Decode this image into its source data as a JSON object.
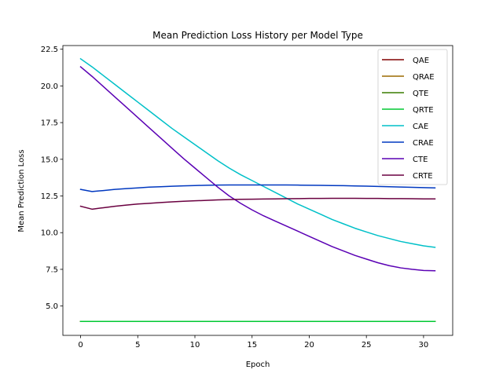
{
  "chart_data": {
    "type": "line",
    "title": "Mean Prediction Loss History per Model Type",
    "xlabel": "Epoch",
    "ylabel": "Mean Prediction Loss",
    "xlim": [
      -1.55,
      32.55
    ],
    "ylim": [
      3.0,
      22.75
    ],
    "xticks": [
      0,
      5,
      10,
      15,
      20,
      25,
      30
    ],
    "yticks": [
      5.0,
      7.5,
      10.0,
      12.5,
      15.0,
      17.5,
      20.0,
      22.5
    ],
    "ytick_labels": [
      "5.0",
      "7.5",
      "10.0",
      "12.5",
      "15.0",
      "17.5",
      "20.0",
      "22.5"
    ],
    "grid": false,
    "legend_position": "top-right",
    "x": [
      0,
      1,
      2,
      3,
      4,
      5,
      6,
      7,
      8,
      9,
      10,
      11,
      12,
      13,
      14,
      15,
      16,
      17,
      18,
      19,
      20,
      21,
      22,
      23,
      24,
      25,
      26,
      27,
      28,
      29,
      30,
      31
    ],
    "series": [
      {
        "name": "QAE",
        "color": "#800000",
        "values": [
          3.95,
          3.95,
          3.95,
          3.95,
          3.95,
          3.95,
          3.95,
          3.95,
          3.95,
          3.95,
          3.95,
          3.95,
          3.95,
          3.95,
          3.95,
          3.95,
          3.95,
          3.95,
          3.95,
          3.95,
          3.95,
          3.95,
          3.95,
          3.95,
          3.95,
          3.95,
          3.95,
          3.95,
          3.95,
          3.95,
          3.95,
          3.95
        ]
      },
      {
        "name": "QRAE",
        "color": "#9b6a00",
        "values": [
          3.95,
          3.95,
          3.95,
          3.95,
          3.95,
          3.95,
          3.95,
          3.95,
          3.95,
          3.95,
          3.95,
          3.95,
          3.95,
          3.95,
          3.95,
          3.95,
          3.95,
          3.95,
          3.95,
          3.95,
          3.95,
          3.95,
          3.95,
          3.95,
          3.95,
          3.95,
          3.95,
          3.95,
          3.95,
          3.95,
          3.95,
          3.95
        ]
      },
      {
        "name": "QTE",
        "color": "#3a7d00",
        "values": [
          3.95,
          3.95,
          3.95,
          3.95,
          3.95,
          3.95,
          3.95,
          3.95,
          3.95,
          3.95,
          3.95,
          3.95,
          3.95,
          3.95,
          3.95,
          3.95,
          3.95,
          3.95,
          3.95,
          3.95,
          3.95,
          3.95,
          3.95,
          3.95,
          3.95,
          3.95,
          3.95,
          3.95,
          3.95,
          3.95,
          3.95,
          3.95
        ]
      },
      {
        "name": "QRTE",
        "color": "#00c832",
        "values": [
          3.95,
          3.95,
          3.95,
          3.95,
          3.95,
          3.95,
          3.95,
          3.95,
          3.95,
          3.95,
          3.95,
          3.95,
          3.95,
          3.95,
          3.95,
          3.95,
          3.95,
          3.95,
          3.95,
          3.95,
          3.95,
          3.95,
          3.95,
          3.95,
          3.95,
          3.95,
          3.95,
          3.95,
          3.95,
          3.95,
          3.95,
          3.95
        ]
      },
      {
        "name": "CAE",
        "color": "#00c0c8",
        "values": [
          21.85,
          21.3,
          20.7,
          20.1,
          19.5,
          18.9,
          18.3,
          17.7,
          17.1,
          16.55,
          16.0,
          15.45,
          14.9,
          14.4,
          13.95,
          13.55,
          13.15,
          12.75,
          12.35,
          11.95,
          11.6,
          11.25,
          10.9,
          10.6,
          10.3,
          10.05,
          9.8,
          9.6,
          9.4,
          9.25,
          9.1,
          9.0
        ]
      },
      {
        "name": "CRAE",
        "color": "#0038c0",
        "values": [
          12.95,
          12.8,
          12.87,
          12.95,
          13.0,
          13.05,
          13.1,
          13.13,
          13.16,
          13.19,
          13.21,
          13.23,
          13.24,
          13.25,
          13.25,
          13.25,
          13.25,
          13.25,
          13.25,
          13.24,
          13.23,
          13.22,
          13.21,
          13.2,
          13.18,
          13.17,
          13.15,
          13.13,
          13.11,
          13.09,
          13.07,
          13.05
        ]
      },
      {
        "name": "CTE",
        "color": "#5a00b4",
        "values": [
          21.3,
          20.65,
          19.95,
          19.25,
          18.55,
          17.85,
          17.15,
          16.45,
          15.75,
          15.05,
          14.4,
          13.75,
          13.1,
          12.5,
          12.0,
          11.55,
          11.15,
          10.8,
          10.45,
          10.1,
          9.75,
          9.4,
          9.05,
          8.75,
          8.45,
          8.2,
          7.95,
          7.75,
          7.6,
          7.5,
          7.42,
          7.4
        ]
      },
      {
        "name": "CRTE",
        "color": "#6a0040",
        "values": [
          11.8,
          11.6,
          11.7,
          11.8,
          11.88,
          11.95,
          12.0,
          12.05,
          12.1,
          12.14,
          12.17,
          12.2,
          12.23,
          12.25,
          12.27,
          12.28,
          12.29,
          12.3,
          12.31,
          12.32,
          12.33,
          12.33,
          12.34,
          12.34,
          12.34,
          12.33,
          12.33,
          12.32,
          12.32,
          12.31,
          12.3,
          12.3
        ]
      }
    ]
  }
}
